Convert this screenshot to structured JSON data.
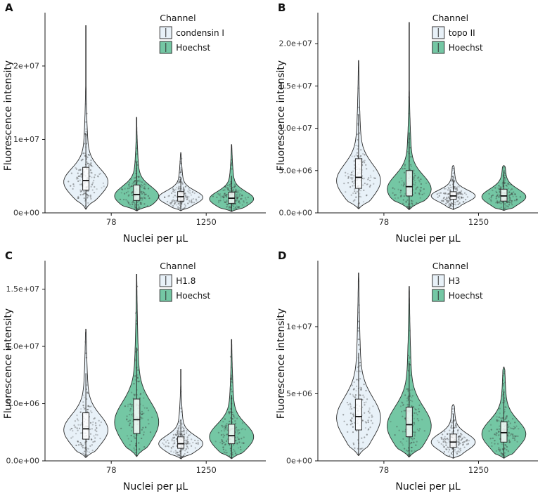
{
  "page": {
    "background": "#ffffff"
  },
  "palette": {
    "outline": "#1a1a1a",
    "violin_stroke": "#2b2b2b",
    "point_color": "#3a3a3a",
    "blue_fill": "#e8f1f8",
    "green_fill": "#74c7a4",
    "tick_text": "#303030",
    "label_text": "#111111"
  },
  "chart_data": [
    {
      "type": "violin",
      "panel_label": "A",
      "xlabel": "Nuclei per µL",
      "ylabel": "Fluorescence intensity",
      "legend": {
        "title": "Channel",
        "entries": [
          {
            "label": "condensin I",
            "fill": "#e8f1f8"
          },
          {
            "label": "Hoechst",
            "fill": "#74c7a4"
          }
        ]
      },
      "categories": [
        "78",
        "1250"
      ],
      "ylim": [
        0,
        26500000
      ],
      "yticks": [
        {
          "v": 0,
          "label": "0e+00"
        },
        {
          "v": 10000000,
          "label": "1e+07"
        },
        {
          "v": 20000000,
          "label": "2e+07"
        }
      ],
      "violins": [
        {
          "category": "78",
          "channel": "condensin I",
          "fill": "#e8f1f8",
          "min": 500000,
          "max": 25500000,
          "mode": 4200000,
          "spread": 1800000,
          "median": 4400000,
          "q1": 3100000,
          "q3": 6200000,
          "n": 150
        },
        {
          "category": "78",
          "channel": "Hoechst",
          "fill": "#74c7a4",
          "min": 300000,
          "max": 13000000,
          "mode": 2300000,
          "spread": 1300000,
          "median": 2500000,
          "q1": 1700000,
          "q3": 3800000,
          "n": 150
        },
        {
          "category": "1250",
          "channel": "condensin I",
          "fill": "#e8f1f8",
          "min": 300000,
          "max": 8200000,
          "mode": 2100000,
          "spread": 900000,
          "median": 2200000,
          "q1": 1600000,
          "q3": 2900000,
          "n": 170
        },
        {
          "category": "1250",
          "channel": "Hoechst",
          "fill": "#74c7a4",
          "min": 200000,
          "max": 9300000,
          "mode": 1900000,
          "spread": 1000000,
          "median": 2000000,
          "q1": 1300000,
          "q3": 2800000,
          "n": 170
        }
      ]
    },
    {
      "type": "violin",
      "panel_label": "B",
      "xlabel": "Nuclei per µL",
      "ylabel": "Fluorescence intensity",
      "legend": {
        "title": "Channel",
        "entries": [
          {
            "label": "topo II",
            "fill": "#e8f1f8"
          },
          {
            "label": "Hoechst",
            "fill": "#74c7a4"
          }
        ]
      },
      "categories": [
        "78",
        "1250"
      ],
      "ylim": [
        0,
        23000000
      ],
      "yticks": [
        {
          "v": 0,
          "label": "0.0e+00"
        },
        {
          "v": 5000000,
          "label": "5.0e+06"
        },
        {
          "v": 10000000,
          "label": "1.0e+07"
        },
        {
          "v": 15000000,
          "label": "1.5e+07"
        },
        {
          "v": 20000000,
          "label": "2.0e+07"
        }
      ],
      "violins": [
        {
          "category": "78",
          "channel": "topo II",
          "fill": "#e8f1f8",
          "min": 500000,
          "max": 18000000,
          "mode": 3800000,
          "spread": 1900000,
          "median": 4200000,
          "q1": 2900000,
          "q3": 6400000,
          "n": 130
        },
        {
          "category": "78",
          "channel": "Hoechst",
          "fill": "#74c7a4",
          "min": 400000,
          "max": 22500000,
          "mode": 2800000,
          "spread": 1600000,
          "median": 3100000,
          "q1": 2000000,
          "q3": 5000000,
          "n": 130
        },
        {
          "category": "1250",
          "channel": "topo II",
          "fill": "#e8f1f8",
          "min": 400000,
          "max": 5600000,
          "mode": 2000000,
          "spread": 700000,
          "median": 2000000,
          "q1": 1600000,
          "q3": 2500000,
          "n": 150
        },
        {
          "category": "1250",
          "channel": "Hoechst",
          "fill": "#74c7a4",
          "min": 300000,
          "max": 5600000,
          "mode": 1900000,
          "spread": 900000,
          "median": 2000000,
          "q1": 1400000,
          "q3": 2800000,
          "n": 150
        }
      ]
    },
    {
      "type": "violin",
      "panel_label": "C",
      "xlabel": "Nuclei per µL",
      "ylabel": "Fluorescence intensity",
      "legend": {
        "title": "Channel",
        "entries": [
          {
            "label": "H1.8",
            "fill": "#e8f1f8"
          },
          {
            "label": "Hoechst",
            "fill": "#74c7a4"
          }
        ]
      },
      "categories": [
        "78",
        "1250"
      ],
      "ylim": [
        0,
        17000000
      ],
      "yticks": [
        {
          "v": 0,
          "label": "0.0e+00"
        },
        {
          "v": 5000000,
          "label": "5.0e+06"
        },
        {
          "v": 10000000,
          "label": "1.0e+07"
        },
        {
          "v": 15000000,
          "label": "1.5e+07"
        }
      ],
      "violins": [
        {
          "category": "78",
          "channel": "H1.8",
          "fill": "#e8f1f8",
          "min": 300000,
          "max": 11500000,
          "mode": 2700000,
          "spread": 1300000,
          "median": 2800000,
          "q1": 1900000,
          "q3": 4200000,
          "n": 140
        },
        {
          "category": "78",
          "channel": "Hoechst",
          "fill": "#74c7a4",
          "min": 400000,
          "max": 16300000,
          "mode": 3400000,
          "spread": 1700000,
          "median": 3600000,
          "q1": 2400000,
          "q3": 5400000,
          "n": 140
        },
        {
          "category": "1250",
          "channel": "H1.8",
          "fill": "#e8f1f8",
          "min": 200000,
          "max": 8000000,
          "mode": 1500000,
          "spread": 700000,
          "median": 1500000,
          "q1": 1100000,
          "q3": 2100000,
          "n": 160
        },
        {
          "category": "1250",
          "channel": "Hoechst",
          "fill": "#74c7a4",
          "min": 200000,
          "max": 10600000,
          "mode": 2100000,
          "spread": 1100000,
          "median": 2200000,
          "q1": 1500000,
          "q3": 3200000,
          "n": 160
        }
      ]
    },
    {
      "type": "violin",
      "panel_label": "D",
      "xlabel": "Nuclei per µL",
      "ylabel": "Fluorescence intensity",
      "legend": {
        "title": "Channel",
        "entries": [
          {
            "label": "H3",
            "fill": "#e8f1f8"
          },
          {
            "label": "Hoechst",
            "fill": "#74c7a4"
          }
        ]
      },
      "categories": [
        "78",
        "1250"
      ],
      "ylim": [
        0,
        14500000
      ],
      "yticks": [
        {
          "v": 0,
          "label": "0e+00"
        },
        {
          "v": 5000000,
          "label": "5e+06"
        },
        {
          "v": 10000000,
          "label": "1e+07"
        }
      ],
      "violins": [
        {
          "category": "78",
          "channel": "H3",
          "fill": "#e8f1f8",
          "min": 400000,
          "max": 14000000,
          "mode": 3200000,
          "spread": 1500000,
          "median": 3300000,
          "q1": 2300000,
          "q3": 4600000,
          "n": 140
        },
        {
          "category": "78",
          "channel": "Hoechst",
          "fill": "#74c7a4",
          "min": 300000,
          "max": 13000000,
          "mode": 2600000,
          "spread": 1400000,
          "median": 2700000,
          "q1": 1800000,
          "q3": 4000000,
          "n": 140
        },
        {
          "category": "1250",
          "channel": "H3",
          "fill": "#e8f1f8",
          "min": 200000,
          "max": 4200000,
          "mode": 1400000,
          "spread": 600000,
          "median": 1400000,
          "q1": 1000000,
          "q3": 2000000,
          "n": 160
        },
        {
          "category": "1250",
          "channel": "Hoechst",
          "fill": "#74c7a4",
          "min": 200000,
          "max": 7000000,
          "mode": 2000000,
          "spread": 1000000,
          "median": 2100000,
          "q1": 1400000,
          "q3": 2900000,
          "n": 160
        }
      ]
    }
  ]
}
